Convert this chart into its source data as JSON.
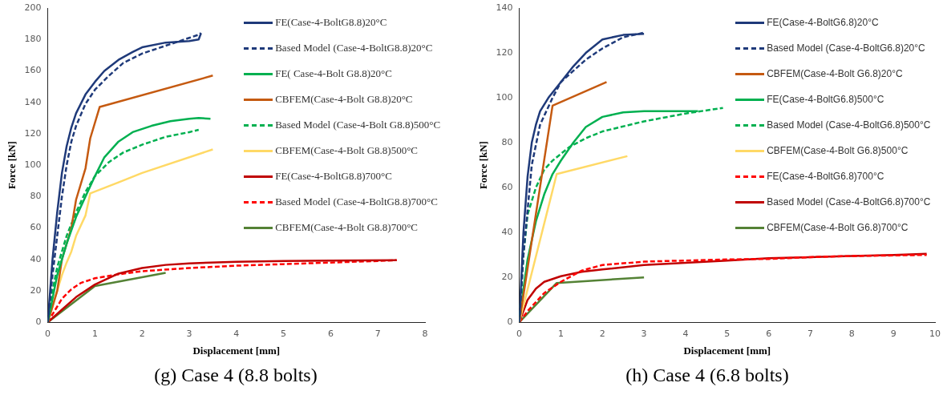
{
  "chart_data": [
    {
      "type": "line",
      "xlabel": "Displacement [mm]",
      "ylabel": "Force [kN]",
      "annotations": [
        "(g) Case 4 (8.8 bolts)"
      ],
      "xlim": [
        0,
        8
      ],
      "xticks": [
        0,
        1,
        2,
        3,
        4,
        5,
        6,
        7,
        8
      ],
      "ylim": [
        0,
        200
      ],
      "yticks": [
        0,
        20,
        40,
        60,
        80,
        100,
        120,
        140,
        160,
        180,
        200
      ],
      "grid": false,
      "legend": "top right",
      "marker": "none",
      "series": [
        {
          "name": "FE(Case-4-BoltG8.8)20°C",
          "color": "#1f3a7a",
          "line_style": "solid",
          "x": [
            0,
            0.05,
            0.1,
            0.2,
            0.3,
            0.4,
            0.5,
            0.6,
            0.8,
            1,
            1.2,
            1.5,
            1.8,
            2,
            2.5,
            3,
            3.2,
            3.25
          ],
          "values": [
            0,
            20,
            40,
            70,
            95,
            112,
            124,
            133,
            145,
            153,
            160,
            167,
            172,
            175,
            178,
            179,
            180,
            184
          ]
        },
        {
          "name": "Based Model (Case-4-BoltG8.8)20°C",
          "color": "#1f3a7a",
          "line_style": "dashed",
          "x": [
            0,
            0.1,
            0.2,
            0.3,
            0.4,
            0.5,
            0.6,
            0.8,
            1,
            1.3,
            1.6,
            2,
            2.5,
            3,
            3.2,
            3.25
          ],
          "values": [
            0,
            30,
            55,
            80,
            100,
            115,
            125,
            139,
            148,
            157,
            165,
            171,
            176,
            181,
            183,
            184
          ]
        },
        {
          "name": "FE( Case-4-Bolt G8.8)20°C",
          "color": "#00b050",
          "line_style": "solid",
          "x": [
            0,
            0.1,
            0.2,
            0.4,
            0.6,
            0.8,
            1,
            1.2,
            1.5,
            1.8,
            2.2,
            2.6,
            3,
            3.2,
            3.45
          ],
          "values": [
            0,
            15,
            30,
            50,
            67,
            80,
            93,
            105,
            115,
            121,
            125,
            128,
            129.5,
            130,
            129.5
          ]
        },
        {
          "name": "CBFEM(Case-4-Bolt G8.8)20°C",
          "color": "#c55a11",
          "line_style": "solid",
          "x": [
            0,
            0.1,
            0.2,
            0.3,
            0.5,
            0.6,
            0.8,
            0.9,
            1.1,
            3.5
          ],
          "values": [
            0,
            10,
            20,
            40,
            60,
            78,
            98,
            117,
            137,
            157
          ]
        },
        {
          "name": "Based Model (Case-4-Bolt G8.8)500°C",
          "color": "#00b050",
          "line_style": "dashed",
          "x": [
            0,
            0.1,
            0.2,
            0.4,
            0.6,
            0.8,
            1,
            1.3,
            1.6,
            2,
            2.5,
            3,
            3.2
          ],
          "values": [
            0,
            20,
            35,
            55,
            70,
            83,
            93,
            102,
            108,
            113,
            118,
            121,
            122.5
          ]
        },
        {
          "name": "CBFEM(Case-4-Bolt G8.8)500°C",
          "color": "#ffd966",
          "line_style": "solid",
          "x": [
            0,
            0.1,
            0.2,
            0.3,
            0.4,
            0.5,
            0.6,
            0.8,
            0.9,
            1.5,
            2,
            3.5
          ],
          "values": [
            0,
            10,
            20,
            30,
            38,
            45,
            55,
            68,
            82,
            89,
            95,
            110
          ]
        },
        {
          "name": "FE(Case-4-BoltG8.8)700°C",
          "color": "#c00000",
          "line_style": "solid",
          "x": [
            0,
            0.3,
            0.6,
            1,
            1.5,
            2,
            2.5,
            3,
            4,
            5,
            6,
            7.4
          ],
          "values": [
            0,
            8,
            16,
            24,
            31,
            34.5,
            36.5,
            37.5,
            38.5,
            39,
            39.2,
            39.5
          ]
        },
        {
          "name": "Based Model (Case-4-BoltG8.8)700°C",
          "color": "#ff0000",
          "line_style": "dashed",
          "x": [
            0,
            0.1,
            0.3,
            0.5,
            0.7,
            1,
            1.5,
            2,
            3,
            4,
            5,
            6,
            7,
            7.4
          ],
          "values": [
            0,
            5,
            15,
            21,
            25,
            28,
            30.5,
            32.5,
            34.5,
            36,
            37,
            38,
            39,
            39.5
          ]
        },
        {
          "name": "CBFEM(Case-4-Bolt G8.8)700°C",
          "color": "#548235",
          "line_style": "solid",
          "x": [
            0,
            1,
            2.5
          ],
          "values": [
            0,
            23,
            31.5
          ]
        }
      ]
    },
    {
      "type": "line",
      "xlabel": "Displacement [mm]",
      "ylabel": "Force [kN]",
      "annotations": [
        "(h) Case 4 (6.8 bolts)"
      ],
      "xlim": [
        0,
        10
      ],
      "xticks": [
        0,
        1,
        2,
        3,
        4,
        5,
        6,
        7,
        8,
        9,
        10
      ],
      "ylim": [
        0,
        140
      ],
      "yticks": [
        0,
        20,
        40,
        60,
        80,
        100,
        120,
        140
      ],
      "grid": false,
      "legend": "top right",
      "marker": "none",
      "series": [
        {
          "name": "FE(Case-4-BoltG6.8)20°C",
          "color": "#1f3a7a",
          "line_style": "solid",
          "x": [
            0,
            0.05,
            0.1,
            0.2,
            0.3,
            0.4,
            0.5,
            0.7,
            1,
            1.3,
            1.6,
            2,
            2.5,
            3
          ],
          "values": [
            0,
            20,
            40,
            65,
            80,
            88,
            94,
            100,
            107,
            114,
            120,
            126,
            128,
            128.5
          ]
        },
        {
          "name": "Based Model (Case-4-BoltG6.8)20°C",
          "color": "#1f3a7a",
          "line_style": "dashed",
          "x": [
            0,
            0.1,
            0.2,
            0.3,
            0.5,
            0.8,
            1,
            1.3,
            1.6,
            2,
            2.5,
            3
          ],
          "values": [
            0,
            30,
            50,
            70,
            88,
            100,
            107,
            112,
            117,
            122,
            127,
            129
          ]
        },
        {
          "name": "CBFEM(Case-4-Bolt G6.8)20°C",
          "color": "#c55a11",
          "line_style": "solid",
          "x": [
            0,
            0.8,
            2.1
          ],
          "values": [
            0,
            96.5,
            107
          ]
        },
        {
          "name": "FE(Case-4-BoltG6.8)500°C",
          "color": "#00b050",
          "line_style": "solid",
          "x": [
            0,
            0.1,
            0.2,
            0.4,
            0.6,
            0.8,
            1,
            1.3,
            1.6,
            2,
            2.5,
            3,
            4.3
          ],
          "values": [
            0,
            15,
            28,
            45,
            57,
            66,
            72,
            80,
            87,
            91.5,
            93.5,
            94,
            94
          ]
        },
        {
          "name": "Based Model (Case-4-BoltG6.8)500°C",
          "color": "#00b050",
          "line_style": "dashed",
          "x": [
            0,
            0.1,
            0.2,
            0.4,
            0.6,
            0.8,
            1.2,
            1.6,
            2,
            3,
            4,
            4.9
          ],
          "values": [
            0,
            30,
            48,
            60,
            68,
            72,
            78,
            82,
            85,
            89.5,
            93,
            95.5
          ]
        },
        {
          "name": "CBFEM(Case-4-Bolt G6.8)500°C",
          "color": "#ffd966",
          "line_style": "solid",
          "x": [
            0,
            0.9,
            2.6
          ],
          "values": [
            0,
            66,
            74
          ]
        },
        {
          "name": "FE(Case-4-BoltG6.8)700°C",
          "color": "#ff0000",
          "line_style": "dashed",
          "x": [
            0,
            0.2,
            0.6,
            1,
            1.5,
            2,
            3,
            4,
            5,
            6,
            7,
            8,
            9.8
          ],
          "values": [
            0,
            5,
            13,
            18,
            23,
            25.5,
            27,
            27.5,
            28,
            28.2,
            29,
            29.5,
            30
          ]
        },
        {
          "name": "Based Model (Case-4-BoltG6.8)700°C",
          "color": "#c00000",
          "line_style": "solid",
          "x": [
            0,
            0.2,
            0.4,
            0.6,
            1,
            1.5,
            2,
            3,
            4,
            5,
            6,
            7,
            8,
            9,
            9.8
          ],
          "values": [
            0,
            10,
            15,
            18,
            20.5,
            22.5,
            23.5,
            25.5,
            26.5,
            27.5,
            28.5,
            29,
            29.5,
            30,
            30.5
          ]
        },
        {
          "name": "CBFEM(Case-4-Bolt G6.8)700°C",
          "color": "#548235",
          "line_style": "solid",
          "x": [
            0,
            0.9,
            3
          ],
          "values": [
            0,
            17.5,
            20
          ]
        }
      ]
    }
  ]
}
